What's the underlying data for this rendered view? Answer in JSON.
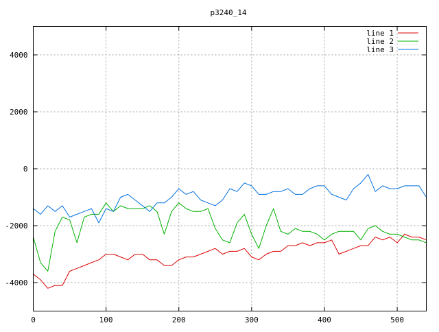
{
  "chart_data": {
    "type": "line",
    "title": "p3240_14",
    "xlabel": "",
    "ylabel": "",
    "xlim": [
      0,
      540
    ],
    "ylim": [
      -5000,
      5000
    ],
    "xticks": [
      0,
      100,
      200,
      300,
      400,
      500
    ],
    "yticks": [
      -4000,
      -2000,
      0,
      2000,
      4000
    ],
    "grid": true,
    "legend_position": "top-right",
    "x": [
      0,
      10,
      20,
      30,
      40,
      50,
      60,
      70,
      80,
      90,
      100,
      110,
      120,
      130,
      140,
      150,
      160,
      170,
      180,
      190,
      200,
      210,
      220,
      230,
      240,
      250,
      260,
      270,
      280,
      290,
      300,
      310,
      320,
      330,
      340,
      350,
      360,
      370,
      380,
      390,
      400,
      410,
      420,
      430,
      440,
      450,
      460,
      470,
      480,
      490,
      500,
      510,
      520,
      530,
      540
    ],
    "series": [
      {
        "name": "line 1",
        "color": "#dd0000",
        "values": [
          -3700,
          -3900,
          -4200,
          -4100,
          -4100,
          -3600,
          -3500,
          -3400,
          -3300,
          -3200,
          -3000,
          -3000,
          -3100,
          -3200,
          -3000,
          -3000,
          -3200,
          -3200,
          -3400,
          -3400,
          -3200,
          -3100,
          -3100,
          -3000,
          -2900,
          -2800,
          -3000,
          -2900,
          -2900,
          -2800,
          -3100,
          -3200,
          -3000,
          -2900,
          -2900,
          -2700,
          -2700,
          -2600,
          -2700,
          -2600,
          -2600,
          -2500,
          -3000,
          -2900,
          -2800,
          -2700,
          -2700,
          -2400,
          -2500,
          -2400,
          -2600,
          -2300,
          -2400,
          -2400,
          -2500
        ]
      },
      {
        "name": "line 2",
        "color": "#00b000",
        "values": [
          -2400,
          -3300,
          -3600,
          -2200,
          -1700,
          -1800,
          -2600,
          -1700,
          -1600,
          -1600,
          -1200,
          -1500,
          -1300,
          -1400,
          -1400,
          -1400,
          -1300,
          -1500,
          -2300,
          -1500,
          -1200,
          -1400,
          -1500,
          -1500,
          -1400,
          -2100,
          -2500,
          -2600,
          -1900,
          -1600,
          -2300,
          -2800,
          -2000,
          -1400,
          -2200,
          -2300,
          -2100,
          -2200,
          -2200,
          -2300,
          -2500,
          -2300,
          -2200,
          -2200,
          -2200,
          -2500,
          -2100,
          -2000,
          -2200,
          -2300,
          -2300,
          -2400,
          -2500,
          -2500,
          -2600
        ]
      },
      {
        "name": "line 3",
        "color": "#0070e0",
        "values": [
          -1400,
          -1600,
          -1300,
          -1500,
          -1300,
          -1700,
          -1600,
          -1500,
          -1400,
          -1900,
          -1400,
          -1500,
          -1000,
          -900,
          -1100,
          -1300,
          -1500,
          -1200,
          -1200,
          -1000,
          -700,
          -900,
          -800,
          -1100,
          -1200,
          -1300,
          -1100,
          -700,
          -800,
          -500,
          -600,
          -900,
          -900,
          -800,
          -800,
          -700,
          -900,
          -900,
          -700,
          -600,
          -600,
          -900,
          -1000,
          -1100,
          -700,
          -500,
          -200,
          -800,
          -600,
          -700,
          -700,
          -600,
          -600,
          -600,
          -1000
        ]
      }
    ]
  }
}
